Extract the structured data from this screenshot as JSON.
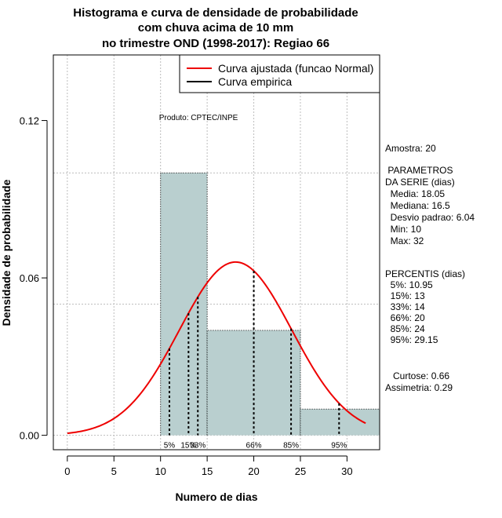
{
  "chart_data": {
    "type": "histogram",
    "title_lines": [
      "Histograma e curva de densidade de probabilidade",
      "com chuva acima de 10 mm",
      "no trimestre OND (1998-2017): Regiao 66"
    ],
    "xlabel": "Numero de dias",
    "ylabel": "Densidade de probabilidade",
    "xlim": [
      -1.5,
      33.5
    ],
    "ylim": [
      -0.0055,
      0.145
    ],
    "x_ticks": [
      0,
      5,
      10,
      15,
      20,
      25,
      30
    ],
    "y_ticks": [
      0.0,
      0.06,
      0.12
    ],
    "y_tick_labels": [
      "0.00",
      "0.06",
      "0.12"
    ],
    "grid_y": [
      0,
      0.05,
      0.1
    ],
    "bins": [
      {
        "start": 10,
        "end": 15,
        "density": 0.1
      },
      {
        "start": 15,
        "end": 25,
        "density": 0.04
      },
      {
        "start": 25,
        "end": 33.5,
        "density": 0.01
      }
    ],
    "normal_fit": {
      "mean": 18.05,
      "sd": 6.04,
      "x_from": 0,
      "x_to": 32,
      "color": "#ee0000"
    },
    "percentile_lines": [
      {
        "label": "5%",
        "value": 10.95
      },
      {
        "label": "15%",
        "value": 13
      },
      {
        "label": "33%",
        "value": 14
      },
      {
        "label": "66%",
        "value": 20
      },
      {
        "label": "85%",
        "value": 24
      },
      {
        "label": "95%",
        "value": 29.15
      }
    ],
    "legend": [
      {
        "label": "Curva ajustada (funcao Normal)",
        "color": "#ee0000"
      },
      {
        "label": "Curva empirica",
        "color": "#000000"
      }
    ],
    "annotation": "Produto: CPTEC/INPE",
    "bar_color": "#b9cfcf"
  },
  "side_panel": {
    "sample": "Amostra: 20",
    "params_title_1": " PARAMETROS",
    "params_title_2": "DA SERIE (dias)",
    "params": [
      "  Media: 18.05",
      "  Mediana: 16.5",
      "  Desvio padrao: 6.04",
      "  Min: 10",
      "  Max: 32"
    ],
    "percentis_title": "PERCENTIS (dias)",
    "percentis": [
      "  5%: 10.95",
      "  15%: 13",
      "  33%: 14",
      "  66%: 20",
      "  85%: 24",
      "  95%: 29.15"
    ],
    "curtose": "   Curtose: 0.66",
    "assimetria": "Assimetria: 0.29"
  }
}
